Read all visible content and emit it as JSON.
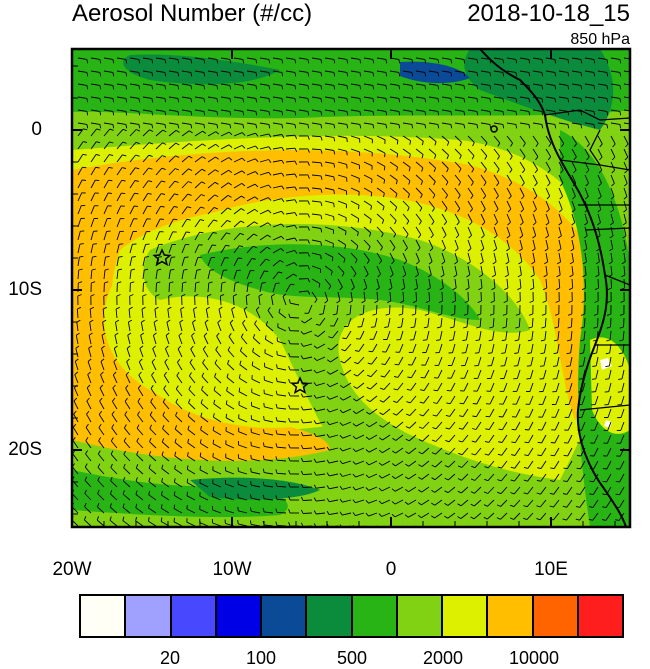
{
  "header": {
    "title": "Aerosol Number (#/cc)",
    "time": "2018-10-18_15",
    "level": "850 hPa"
  },
  "axes": {
    "x_labels": [
      "20W",
      "10W",
      "0",
      "10E"
    ],
    "y_labels": [
      "0",
      "10S",
      "20S"
    ]
  },
  "colors": {
    "bins": [
      "#fffff5",
      "#a0a0ff",
      "#4848ff",
      "#0000e6",
      "#0a4a96",
      "#0a8c3c",
      "#28b414",
      "#82d214",
      "#dcf000",
      "#ffbe00",
      "#ff6400",
      "#ff1e1e"
    ],
    "land_outline": "#000000",
    "wind_barb": "#000000"
  },
  "colorbar": {
    "labels": [
      "20",
      "100",
      "500",
      "2000",
      "10000"
    ]
  },
  "markers": {
    "star_1": "star",
    "star_2": "star"
  }
}
